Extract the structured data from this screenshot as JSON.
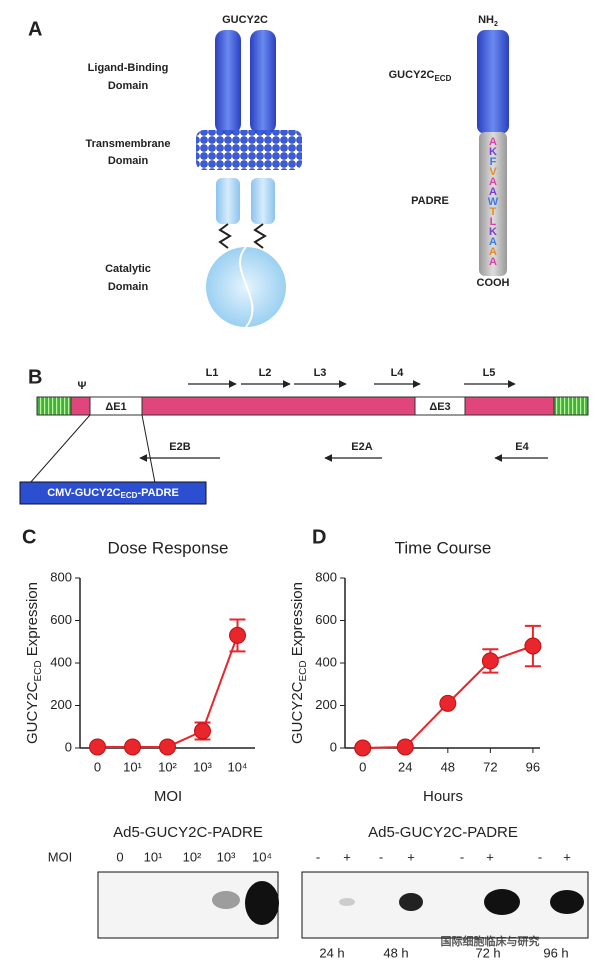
{
  "panel_labels": [
    "A",
    "B",
    "C",
    "D"
  ],
  "panel_a": {
    "receptor_title": "GUCY2C",
    "ligand_label": [
      "Ligand-Binding",
      "Domain"
    ],
    "membrane_label": [
      "Transmembrane",
      "Domain"
    ],
    "catalytic_label": [
      "Catalytic",
      "Domain"
    ],
    "n_term": [
      "NH",
      "2"
    ],
    "ecd_label": [
      "GUCY2C",
      "ECD"
    ],
    "padre_label": "PADRE",
    "c_term": "COOH",
    "padre_letters": [
      "A",
      "K",
      "F",
      "V",
      "A",
      "A",
      "W",
      "T",
      "L",
      "K",
      "A",
      "A",
      "A"
    ]
  },
  "panel_b": {
    "psi": "Ψ",
    "deletions": [
      "ΔE1",
      "ΔE3"
    ],
    "late_genes": [
      "L1",
      "L2",
      "L3",
      "L4",
      "L5"
    ],
    "early_genes": [
      "E2B",
      "E2A",
      "E4"
    ],
    "insert": [
      "CMV-GUCY2C",
      "ECD",
      "-PADRE"
    ]
  },
  "chart_data": [
    {
      "type": "line",
      "title": "Dose Response",
      "y_label": [
        "GUCY2C",
        "ECD",
        " Expression"
      ],
      "x_label": "MOI",
      "categories": [
        "0",
        "10¹",
        "10²",
        "10³",
        "10⁴"
      ],
      "values": [
        5,
        5,
        5,
        80,
        530
      ],
      "errors": [
        0,
        0,
        0,
        40,
        75
      ],
      "color": "#e8262b",
      "ylim": [
        0,
        800
      ],
      "yticks": [
        0,
        200,
        400,
        600,
        800
      ]
    },
    {
      "type": "line",
      "title": "Time Course",
      "y_label": [
        "GUCY2C",
        "ECD",
        " Expression"
      ],
      "x_label": "Hours",
      "x": [
        0,
        24,
        48,
        72,
        96
      ],
      "values": [
        0,
        5,
        210,
        410,
        480
      ],
      "errors": [
        0,
        0,
        0,
        55,
        95
      ],
      "color": "#e8262b",
      "xlim": [
        -10,
        100
      ],
      "xticks": [
        0,
        24,
        48,
        72,
        96
      ],
      "ylim": [
        0,
        800
      ],
      "yticks": [
        0,
        200,
        400,
        600,
        800
      ]
    }
  ],
  "blots": [
    {
      "title": "Ad5-GUCY2C-PADRE",
      "row_label": "MOI",
      "lanes": [
        "0",
        "10¹",
        "10²",
        "10³",
        "10⁴"
      ]
    },
    {
      "title": "Ad5-GUCY2C-PADRE",
      "lanes": [
        "-",
        "+",
        "-",
        "+",
        "-",
        "+",
        "-",
        "+"
      ],
      "times": [
        "24 h",
        "48 h",
        "72 h",
        "96 h"
      ]
    }
  ],
  "watermark": "国际细胞临床与研究"
}
